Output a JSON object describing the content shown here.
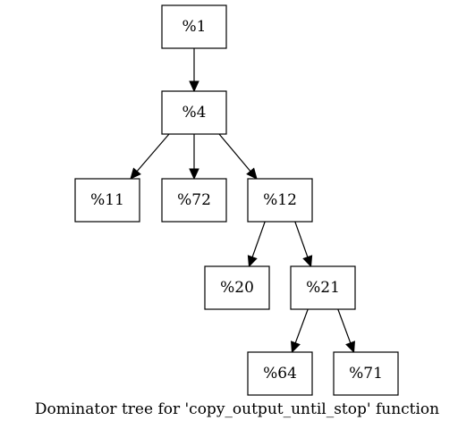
{
  "caption": "Dominator tree for 'copy_output_until_stop' function",
  "nodes": [
    {
      "id": "n1",
      "label": "%1"
    },
    {
      "id": "n4",
      "label": "%4"
    },
    {
      "id": "n11",
      "label": "%11"
    },
    {
      "id": "n72",
      "label": "%72"
    },
    {
      "id": "n12",
      "label": "%12"
    },
    {
      "id": "n20",
      "label": "%20"
    },
    {
      "id": "n21",
      "label": "%21"
    },
    {
      "id": "n64",
      "label": "%64"
    },
    {
      "id": "n71",
      "label": "%71"
    }
  ],
  "edges": [
    {
      "from": "n1",
      "to": "n4"
    },
    {
      "from": "n4",
      "to": "n11"
    },
    {
      "from": "n4",
      "to": "n72"
    },
    {
      "from": "n4",
      "to": "n12"
    },
    {
      "from": "n12",
      "to": "n20"
    },
    {
      "from": "n12",
      "to": "n21"
    },
    {
      "from": "n21",
      "to": "n64"
    },
    {
      "from": "n21",
      "to": "n71"
    }
  ]
}
